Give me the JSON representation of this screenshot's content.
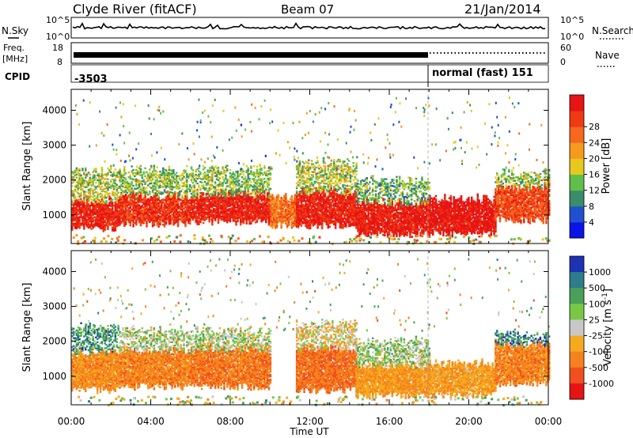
{
  "header": {
    "station": "Clyde River (fitACF)",
    "beam": "Beam 07",
    "date": "21/Jan/2014"
  },
  "summary_panels": {
    "nsky_label": "N.Sky",
    "nsearch_label": "N.Search",
    "freq_label_line1": "Freq.",
    "freq_label_line2": "[MHz]",
    "nave_label": "Nave",
    "cpid_label": "CPID",
    "noise_ticks": [
      "10^5",
      "10^0"
    ],
    "freq_ticks": [
      "18",
      "8"
    ],
    "nave_ticks": [
      "60",
      "0"
    ],
    "cpid_before": "-3503",
    "cpid_after": "normal (fast) 151",
    "cpid_change_time": "18:00"
  },
  "chart_data": [
    {
      "type": "heatmap",
      "name": "power",
      "xlabel": "Time UT",
      "ylabel": "Slant Range [km]",
      "x_ticks": [
        "00:00",
        "04:00",
        "08:00",
        "12:00",
        "16:00",
        "20:00",
        "00:00"
      ],
      "y_ticks": [
        1000,
        2000,
        3000,
        4000
      ],
      "xlim_hours": [
        0,
        24
      ],
      "ylim_km": [
        180,
        4600
      ],
      "colorbar_label": "Power [dB]",
      "colorbar_ticks": [
        "4",
        "8",
        "12",
        "16",
        "20",
        "24",
        "28"
      ],
      "colorbar_colors": [
        "#0a14e6",
        "#2050d0",
        "#3a8c6a",
        "#5fbf4a",
        "#e6c81e",
        "#f59a1e",
        "#f5681e",
        "#f03a14",
        "#e61414"
      ],
      "colorbar_range": [
        0,
        30
      ],
      "bands": [
        {
          "t0": 0.0,
          "t1": 2.4,
          "r0": 600,
          "r1": 1400,
          "level": 0.9
        },
        {
          "t0": 2.4,
          "t1": 6.0,
          "r0": 750,
          "r1": 1550,
          "level": 0.85
        },
        {
          "t0": 6.0,
          "t1": 10.0,
          "r0": 800,
          "r1": 1600,
          "level": 0.9
        },
        {
          "t0": 10.0,
          "t1": 11.3,
          "r0": 700,
          "r1": 1500,
          "level": 0.7
        },
        {
          "t0": 11.3,
          "t1": 14.3,
          "r0": 700,
          "r1": 1650,
          "level": 0.9
        },
        {
          "t0": 14.3,
          "t1": 18.0,
          "r0": 450,
          "r1": 1350,
          "level": 0.92
        },
        {
          "t0": 18.0,
          "t1": 21.3,
          "r0": 450,
          "r1": 1450,
          "level": 0.95
        },
        {
          "t0": 21.3,
          "t1": 24.0,
          "r0": 850,
          "r1": 1800,
          "level": 0.8
        }
      ],
      "upper_bands": [
        {
          "t0": 0.0,
          "t1": 2.4,
          "r0": 1400,
          "r1": 2300,
          "level": 0.45
        },
        {
          "t0": 2.4,
          "t1": 10.0,
          "r0": 1550,
          "r1": 2300,
          "level": 0.4
        },
        {
          "t0": 11.3,
          "t1": 14.3,
          "r0": 1650,
          "r1": 2500,
          "level": 0.45
        },
        {
          "t0": 14.3,
          "t1": 18.0,
          "r0": 1350,
          "r1": 2000,
          "level": 0.35
        },
        {
          "t0": 21.3,
          "t1": 24.0,
          "r0": 1800,
          "r1": 2200,
          "level": 0.4
        }
      ]
    },
    {
      "type": "heatmap",
      "name": "velocity",
      "xlabel": "Time UT",
      "ylabel": "Slant Range [km]",
      "x_ticks": [
        "00:00",
        "04:00",
        "08:00",
        "12:00",
        "16:00",
        "20:00",
        "00:00"
      ],
      "y_ticks": [
        1000,
        2000,
        3000,
        4000
      ],
      "xlim_hours": [
        0,
        24
      ],
      "ylim_km": [
        180,
        4600
      ],
      "colorbar_label": "Velocity [m s^-1]",
      "colorbar_ticks": [
        "1000",
        "500",
        "100",
        "25",
        "-25",
        "-100",
        "-500",
        "-1000"
      ],
      "colorbar_colors": [
        "#1e32b4",
        "#2d7d8c",
        "#4aa05a",
        "#78c846",
        "#c8c8c8",
        "#f5aa1e",
        "#f5821e",
        "#f0501e",
        "#e61414"
      ],
      "bands": [
        {
          "t0": 0.0,
          "t1": 2.4,
          "r0": 600,
          "r1": 1700,
          "level": 0.7
        },
        {
          "t0": 2.4,
          "t1": 6.0,
          "r0": 700,
          "r1": 1750,
          "level": 0.72
        },
        {
          "t0": 6.0,
          "t1": 10.0,
          "r0": 700,
          "r1": 1800,
          "level": 0.74
        },
        {
          "t0": 11.3,
          "t1": 14.3,
          "r0": 600,
          "r1": 1800,
          "level": 0.76
        },
        {
          "t0": 14.3,
          "t1": 18.0,
          "r0": 450,
          "r1": 1300,
          "level": 0.66
        },
        {
          "t0": 18.0,
          "t1": 21.3,
          "r0": 450,
          "r1": 1350,
          "level": 0.64
        },
        {
          "t0": 21.3,
          "t1": 24.0,
          "r0": 800,
          "r1": 1900,
          "level": 0.72
        }
      ],
      "upper_bands": [
        {
          "t0": 0.0,
          "t1": 2.4,
          "r0": 1700,
          "r1": 2400,
          "level": 0.25
        },
        {
          "t0": 2.4,
          "t1": 10.0,
          "r0": 1750,
          "r1": 2300,
          "level": 0.45
        },
        {
          "t0": 11.3,
          "t1": 14.3,
          "r0": 1800,
          "r1": 2500,
          "level": 0.55
        },
        {
          "t0": 14.3,
          "t1": 18.0,
          "r0": 1300,
          "r1": 2000,
          "level": 0.42
        },
        {
          "t0": 21.3,
          "t1": 24.0,
          "r0": 1900,
          "r1": 2200,
          "level": 0.2
        }
      ]
    }
  ]
}
